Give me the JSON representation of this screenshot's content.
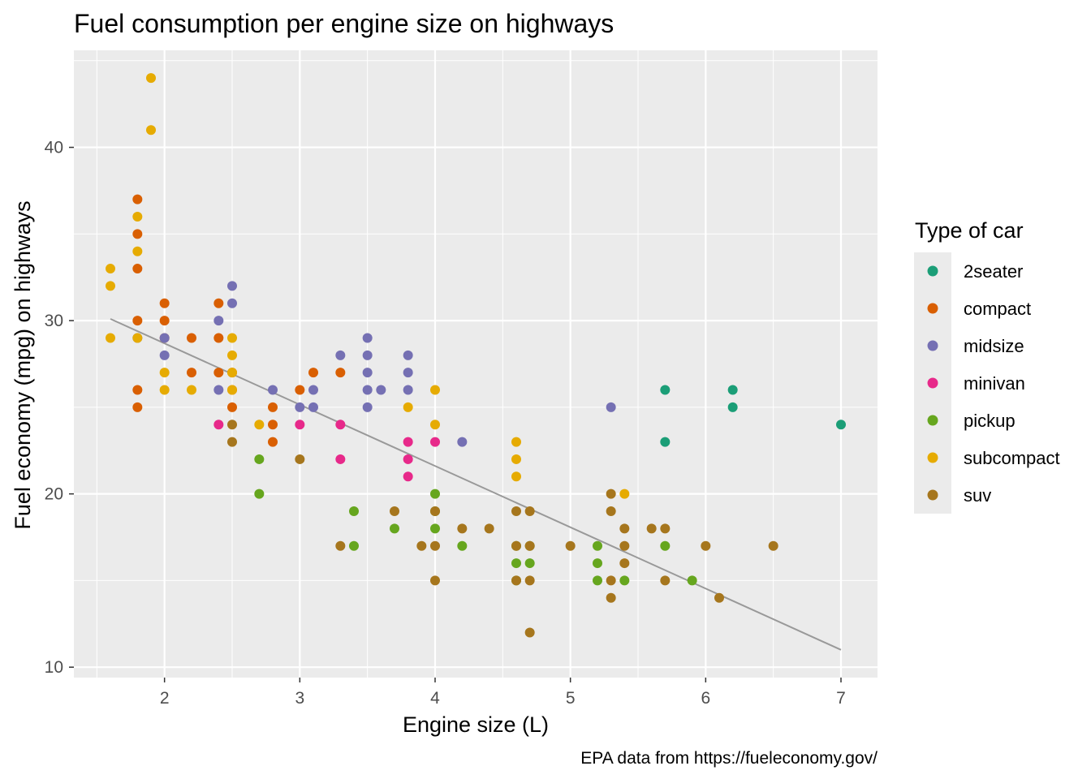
{
  "chart_data": {
    "type": "scatter",
    "title": "Fuel consumption per engine size on highways",
    "xlabel": "Engine size (L)",
    "ylabel": "Fuel economy (mpg) on highways",
    "caption": "EPA data from https://fueleconomy.gov/",
    "xlim": [
      1.33,
      7.27
    ],
    "ylim": [
      9.4,
      45.6
    ],
    "x_ticks": [
      2,
      3,
      4,
      5,
      6,
      7
    ],
    "x_tick_labels": [
      "2",
      "3",
      "4",
      "5",
      "6",
      "7"
    ],
    "y_ticks": [
      10,
      20,
      30,
      40
    ],
    "y_tick_labels": [
      "10",
      "20",
      "30",
      "40"
    ],
    "grid": true,
    "background": "#EBEBEB",
    "legend": {
      "title": "Type of car",
      "position": "right",
      "entries": [
        "2seater",
        "compact",
        "midsize",
        "minivan",
        "pickup",
        "subcompact",
        "suv"
      ]
    },
    "colors": {
      "2seater": "#1B9E77",
      "compact": "#D95F02",
      "midsize": "#7570B3",
      "minivan": "#E7298A",
      "pickup": "#66A61E",
      "subcompact": "#E6AB02",
      "suv": "#A6761D"
    },
    "trend_line": {
      "x": [
        1.6,
        7.0
      ],
      "y": [
        30.1,
        11.0
      ],
      "color": "#999999"
    },
    "series": [
      {
        "name": "2seater",
        "x": [
          5.7,
          5.7,
          6.2,
          6.2,
          7.0
        ],
        "y": [
          26,
          23,
          26,
          25,
          24
        ]
      },
      {
        "name": "compact",
        "x": [
          1.8,
          1.8,
          1.8,
          1.8,
          1.8,
          1.8,
          2.0,
          2.0,
          2.0,
          2.2,
          2.2,
          2.4,
          2.4,
          2.4,
          2.5,
          2.5,
          2.5,
          2.8,
          2.8,
          2.8,
          3.0,
          3.1,
          3.3
        ],
        "y": [
          37,
          35,
          33,
          30,
          26,
          25,
          31,
          30,
          29,
          29,
          27,
          31,
          29,
          27,
          27,
          25,
          26,
          25,
          24,
          23,
          26,
          27,
          27
        ]
      },
      {
        "name": "midsize",
        "x": [
          1.8,
          2.0,
          2.0,
          2.4,
          2.4,
          2.5,
          2.5,
          2.8,
          3.0,
          3.1,
          3.1,
          3.3,
          3.5,
          3.5,
          3.5,
          3.5,
          3.5,
          3.6,
          3.8,
          3.8,
          3.8,
          4.2,
          5.3
        ],
        "y": [
          29,
          29,
          28,
          30,
          26,
          32,
          31,
          26,
          25,
          26,
          25,
          28,
          29,
          28,
          27,
          26,
          25,
          26,
          28,
          27,
          26,
          23,
          25
        ]
      },
      {
        "name": "minivan",
        "x": [
          2.4,
          3.0,
          3.3,
          3.3,
          3.8,
          3.8,
          3.8,
          4.0
        ],
        "y": [
          24,
          24,
          24,
          22,
          23,
          22,
          21,
          23
        ]
      },
      {
        "name": "pickup",
        "x": [
          2.7,
          2.7,
          3.4,
          3.4,
          3.7,
          4.0,
          4.0,
          4.0,
          4.2,
          4.6,
          4.6,
          4.6,
          4.7,
          4.7,
          5.2,
          5.2,
          5.2,
          5.4,
          5.7,
          5.9
        ],
        "y": [
          22,
          20,
          19,
          17,
          18,
          20,
          19,
          18,
          17,
          17,
          16,
          15,
          17,
          16,
          17,
          16,
          15,
          15,
          17,
          15
        ]
      },
      {
        "name": "subcompact",
        "x": [
          1.6,
          1.6,
          1.6,
          1.8,
          1.8,
          1.8,
          1.9,
          1.9,
          2.0,
          2.0,
          2.2,
          2.5,
          2.5,
          2.5,
          2.5,
          2.7,
          3.8,
          4.0,
          4.0,
          4.6,
          4.6,
          4.6,
          5.4
        ],
        "y": [
          33,
          32,
          29,
          36,
          34,
          29,
          44,
          41,
          27,
          26,
          26,
          29,
          28,
          27,
          26,
          24,
          25,
          26,
          24,
          23,
          22,
          21,
          20
        ]
      },
      {
        "name": "suv",
        "x": [
          2.5,
          2.5,
          3.0,
          3.3,
          3.7,
          3.9,
          4.0,
          4.0,
          4.0,
          4.2,
          4.4,
          4.6,
          4.6,
          4.6,
          4.7,
          4.7,
          4.7,
          4.7,
          5.0,
          5.3,
          5.3,
          5.3,
          5.3,
          5.4,
          5.4,
          5.4,
          5.6,
          5.7,
          5.7,
          6.0,
          6.1,
          6.5
        ],
        "y": [
          24,
          23,
          22,
          17,
          19,
          17,
          19,
          17,
          15,
          18,
          18,
          19,
          17,
          15,
          19,
          17,
          15,
          12,
          17,
          20,
          19,
          15,
          14,
          18,
          17,
          16,
          18,
          18,
          15,
          17,
          14,
          17
        ]
      }
    ]
  }
}
